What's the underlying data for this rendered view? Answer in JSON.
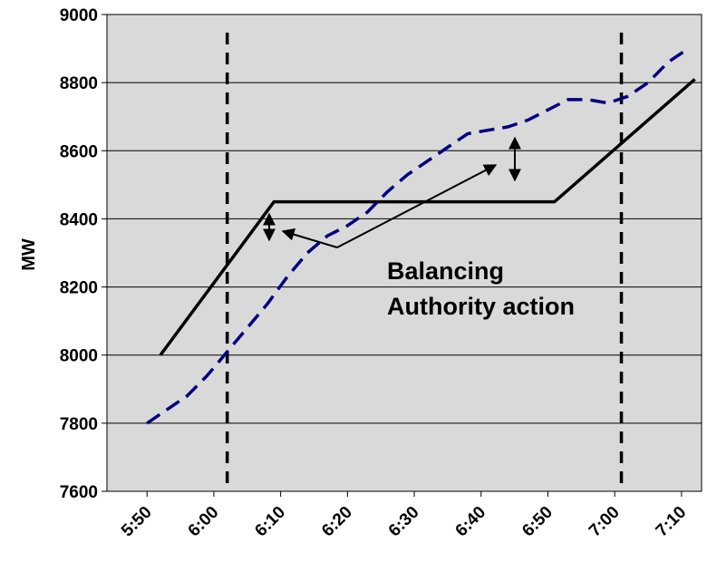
{
  "chart_data": {
    "type": "line",
    "title": "",
    "xlabel": "",
    "ylabel": "MW",
    "ylim": [
      7600,
      9000
    ],
    "yticks": [
      7600,
      7800,
      8000,
      8200,
      8400,
      8600,
      8800,
      9000
    ],
    "x_tick_labels": [
      "5:50",
      "6:00",
      "6:10",
      "6:20",
      "6:30",
      "6:40",
      "6:50",
      "7:00",
      "7:10"
    ],
    "grid": "horizontal",
    "series": [
      {
        "style": "solid",
        "color": "#000000",
        "x": [
          "5:52",
          "6:09",
          "6:51",
          "7:12"
        ],
        "y": [
          8000,
          8450,
          8450,
          8810
        ]
      },
      {
        "style": "dashed",
        "color": "#000080",
        "x": [
          "5:50",
          "5:53",
          "5:56",
          "5:59",
          "6:02",
          "6:05",
          "6:08",
          "6:11",
          "6:14",
          "6:17",
          "6:20",
          "6:23",
          "6:26",
          "6:29",
          "6:32",
          "6:35",
          "6:38",
          "6:41",
          "6:44",
          "6:47",
          "6:50",
          "6:53",
          "6:56",
          "6:59",
          "7:02",
          "7:05",
          "7:08",
          "7:11"
        ],
        "y": [
          7800,
          7840,
          7880,
          7940,
          8010,
          8080,
          8150,
          8230,
          8300,
          8350,
          8380,
          8420,
          8480,
          8530,
          8570,
          8610,
          8650,
          8660,
          8670,
          8690,
          8720,
          8750,
          8750,
          8740,
          8760,
          8800,
          8860,
          8900
        ]
      }
    ],
    "reference_lines": [
      "6:02",
      "7:01"
    ],
    "annotation": {
      "line1": "Balancing",
      "line2": "Authority action"
    }
  },
  "colors": {
    "plot_background": "#d9d9d9",
    "dashed_series": "#000080",
    "solid_series": "#000000"
  }
}
